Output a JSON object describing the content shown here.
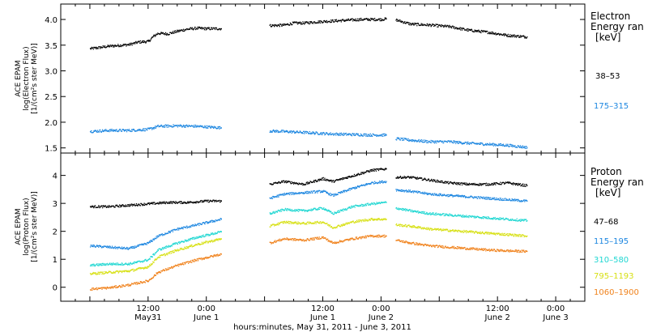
{
  "chart_data": [
    {
      "type": "scatter",
      "panel": "electron",
      "ylabel_lines": [
        "ACE EPAM",
        "log(Electron Flux)",
        "[1/(cm²s ster MeV)]"
      ],
      "legend_title_lines": [
        "Electron",
        "Energy ran"
      ],
      "legend_unit": "[keV]",
      "ylim": [
        1.4,
        4.3
      ],
      "yticks": [
        1.5,
        2.0,
        2.5,
        3.0,
        3.5,
        4.0
      ],
      "ytick_labels": [
        "1.5",
        "2.0",
        "2.5",
        "3.0",
        "3.5",
        "4.0"
      ],
      "series": [
        {
          "name": "38–53",
          "color": "#000000",
          "segments": [
            [
              [
                6,
                3.44
              ],
              [
                10,
                3.49
              ],
              [
                14,
                3.52
              ],
              [
                16,
                3.57
              ],
              [
                18,
                3.58
              ],
              [
                19,
                3.68
              ],
              [
                20,
                3.74
              ],
              [
                22,
                3.73
              ],
              [
                24,
                3.78
              ],
              [
                26,
                3.82
              ],
              [
                28,
                3.84
              ],
              [
                30,
                3.83
              ],
              [
                33,
                3.83
              ]
            ],
            [
              [
                43,
                3.89
              ],
              [
                46,
                3.9
              ],
              [
                48,
                3.94
              ],
              [
                50,
                3.94
              ],
              [
                54,
                3.97
              ],
              [
                58,
                3.99
              ],
              [
                62,
                4.01
              ],
              [
                66,
                4.01
              ],
              [
                67,
                4.02
              ]
            ],
            [
              [
                69,
                4.0
              ],
              [
                72,
                3.92
              ],
              [
                76,
                3.9
              ],
              [
                80,
                3.87
              ],
              [
                84,
                3.8
              ],
              [
                88,
                3.76
              ],
              [
                92,
                3.7
              ],
              [
                96,
                3.67
              ]
            ]
          ]
        },
        {
          "name": "175–315",
          "color": "#1c86e0",
          "segments": [
            [
              [
                6,
                1.83
              ],
              [
                10,
                1.85
              ],
              [
                14,
                1.85
              ],
              [
                18,
                1.87
              ],
              [
                20,
                1.93
              ],
              [
                24,
                1.94
              ],
              [
                28,
                1.93
              ],
              [
                33,
                1.9
              ]
            ],
            [
              [
                43,
                1.84
              ],
              [
                48,
                1.82
              ],
              [
                52,
                1.8
              ],
              [
                56,
                1.78
              ],
              [
                60,
                1.77
              ],
              [
                64,
                1.76
              ],
              [
                67,
                1.76
              ]
            ],
            [
              [
                69,
                1.69
              ],
              [
                72,
                1.66
              ],
              [
                76,
                1.63
              ],
              [
                80,
                1.63
              ],
              [
                84,
                1.6
              ],
              [
                88,
                1.58
              ],
              [
                92,
                1.56
              ],
              [
                96,
                1.52
              ]
            ]
          ]
        }
      ]
    },
    {
      "type": "scatter",
      "panel": "proton",
      "ylabel_lines": [
        "ACE EPAM",
        "log(Proton Flux)",
        "[1/(cm²s ster MeV)]"
      ],
      "legend_title_lines": [
        "Proton",
        "Energy ran"
      ],
      "legend_unit": "[keV]",
      "ylim": [
        -0.5,
        4.8
      ],
      "yticks": [
        0,
        1,
        2,
        3,
        4
      ],
      "ytick_labels": [
        "0",
        "1",
        "2",
        "3",
        "4"
      ],
      "series": [
        {
          "name": "47–68",
          "color": "#000000",
          "segments": [
            [
              [
                6,
                2.9
              ],
              [
                10,
                2.9
              ],
              [
                14,
                2.95
              ],
              [
                18,
                3.0
              ],
              [
                22,
                3.05
              ],
              [
                26,
                3.05
              ],
              [
                30,
                3.1
              ],
              [
                33,
                3.1
              ]
            ],
            [
              [
                43,
                3.7
              ],
              [
                46,
                3.8
              ],
              [
                50,
                3.7
              ],
              [
                54,
                3.9
              ],
              [
                56,
                3.8
              ],
              [
                60,
                4.0
              ],
              [
                64,
                4.2
              ],
              [
                67,
                4.25
              ]
            ],
            [
              [
                69,
                3.95
              ],
              [
                72,
                3.95
              ],
              [
                76,
                3.85
              ],
              [
                80,
                3.75
              ],
              [
                84,
                3.7
              ],
              [
                88,
                3.7
              ],
              [
                92,
                3.75
              ],
              [
                96,
                3.65
              ]
            ]
          ]
        },
        {
          "name": "115–195",
          "color": "#1c86e0",
          "segments": [
            [
              [
                6,
                1.5
              ],
              [
                10,
                1.45
              ],
              [
                14,
                1.4
              ],
              [
                18,
                1.6
              ],
              [
                20,
                1.85
              ],
              [
                24,
                2.1
              ],
              [
                28,
                2.25
              ],
              [
                33,
                2.45
              ]
            ],
            [
              [
                43,
                3.2
              ],
              [
                46,
                3.35
              ],
              [
                50,
                3.4
              ],
              [
                54,
                3.45
              ],
              [
                56,
                3.3
              ],
              [
                60,
                3.55
              ],
              [
                64,
                3.75
              ],
              [
                67,
                3.8
              ]
            ],
            [
              [
                69,
                3.5
              ],
              [
                72,
                3.45
              ],
              [
                76,
                3.35
              ],
              [
                80,
                3.3
              ],
              [
                84,
                3.25
              ],
              [
                88,
                3.2
              ],
              [
                92,
                3.15
              ],
              [
                96,
                3.1
              ]
            ]
          ]
        },
        {
          "name": "310–580",
          "color": "#20d7d2",
          "segments": [
            [
              [
                6,
                0.8
              ],
              [
                10,
                0.85
              ],
              [
                14,
                0.85
              ],
              [
                18,
                1.0
              ],
              [
                20,
                1.35
              ],
              [
                24,
                1.6
              ],
              [
                28,
                1.8
              ],
              [
                33,
                2.0
              ]
            ],
            [
              [
                43,
                2.65
              ],
              [
                46,
                2.8
              ],
              [
                50,
                2.75
              ],
              [
                54,
                2.85
              ],
              [
                56,
                2.65
              ],
              [
                60,
                2.9
              ],
              [
                64,
                3.0
              ],
              [
                67,
                3.05
              ]
            ],
            [
              [
                69,
                2.85
              ],
              [
                72,
                2.75
              ],
              [
                76,
                2.65
              ],
              [
                80,
                2.6
              ],
              [
                84,
                2.55
              ],
              [
                88,
                2.5
              ],
              [
                92,
                2.45
              ],
              [
                96,
                2.4
              ]
            ]
          ]
        },
        {
          "name": "795–1193",
          "color": "#d7e014",
          "segments": [
            [
              [
                6,
                0.5
              ],
              [
                10,
                0.55
              ],
              [
                14,
                0.6
              ],
              [
                18,
                0.75
              ],
              [
                20,
                1.1
              ],
              [
                24,
                1.35
              ],
              [
                28,
                1.55
              ],
              [
                33,
                1.75
              ]
            ],
            [
              [
                43,
                2.2
              ],
              [
                46,
                2.35
              ],
              [
                50,
                2.3
              ],
              [
                54,
                2.35
              ],
              [
                56,
                2.15
              ],
              [
                60,
                2.35
              ],
              [
                64,
                2.45
              ],
              [
                67,
                2.45
              ]
            ],
            [
              [
                69,
                2.25
              ],
              [
                72,
                2.2
              ],
              [
                76,
                2.1
              ],
              [
                80,
                2.05
              ],
              [
                84,
                2.0
              ],
              [
                88,
                1.95
              ],
              [
                92,
                1.9
              ],
              [
                96,
                1.85
              ]
            ]
          ]
        },
        {
          "name": "1060–1900",
          "color": "#f0821c",
          "segments": [
            [
              [
                6,
                -0.05
              ],
              [
                10,
                0.0
              ],
              [
                14,
                0.1
              ],
              [
                18,
                0.25
              ],
              [
                20,
                0.55
              ],
              [
                24,
                0.8
              ],
              [
                28,
                1.0
              ],
              [
                33,
                1.2
              ]
            ],
            [
              [
                43,
                1.6
              ],
              [
                46,
                1.75
              ],
              [
                50,
                1.7
              ],
              [
                54,
                1.8
              ],
              [
                56,
                1.6
              ],
              [
                60,
                1.75
              ],
              [
                64,
                1.85
              ],
              [
                67,
                1.85
              ]
            ],
            [
              [
                69,
                1.7
              ],
              [
                72,
                1.6
              ],
              [
                76,
                1.5
              ],
              [
                80,
                1.45
              ],
              [
                84,
                1.4
              ],
              [
                88,
                1.35
              ],
              [
                92,
                1.32
              ],
              [
                96,
                1.3
              ]
            ]
          ]
        }
      ]
    }
  ],
  "x_axis": {
    "range_hours": [
      0,
      108
    ],
    "ticks": [
      {
        "hour": 18,
        "top": "12:00",
        "bottom": "May31"
      },
      {
        "hour": 30,
        "top": "0:00",
        "bottom": "June 1"
      },
      {
        "hour": 54,
        "top": "12:00",
        "bottom": "June 1"
      },
      {
        "hour": 66,
        "top": "0:00",
        "bottom": "June 2"
      },
      {
        "hour": 90,
        "top": "12:00",
        "bottom": "June 2"
      },
      {
        "hour": 102,
        "top": "0:00",
        "bottom": "June 3"
      }
    ],
    "label": "hours:minutes, May 31, 2011 - June  3, 2011"
  }
}
